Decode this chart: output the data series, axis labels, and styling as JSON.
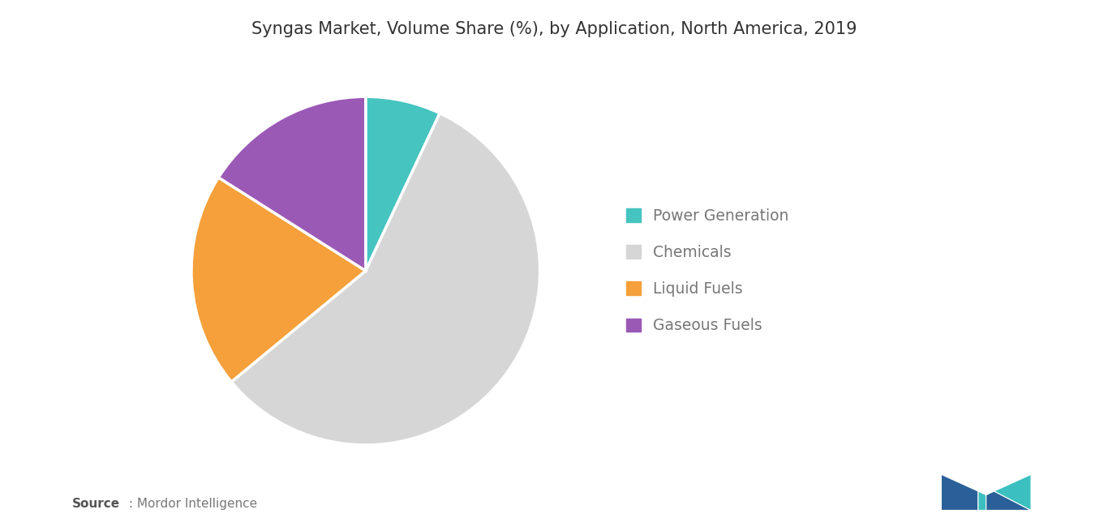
{
  "title": "Syngas Market, Volume Share (%), by Application, North America, 2019",
  "labels": [
    "Power Generation",
    "Chemicals",
    "Liquid Fuels",
    "Gaseous Fuels"
  ],
  "values": [
    7,
    57,
    20,
    16
  ],
  "colors": [
    "#45C4C0",
    "#D6D6D6",
    "#F5A03A",
    "#9B59B6"
  ],
  "legend_labels": [
    "Power Generation",
    "Chemicals",
    "Liquid Fuels",
    "Gaseous Fuels"
  ],
  "source_bold": "Source",
  "source_text": " : Mordor Intelligence",
  "background_color": "#FFFFFF",
  "title_fontsize": 15,
  "legend_fontsize": 13.5,
  "startangle": 90
}
